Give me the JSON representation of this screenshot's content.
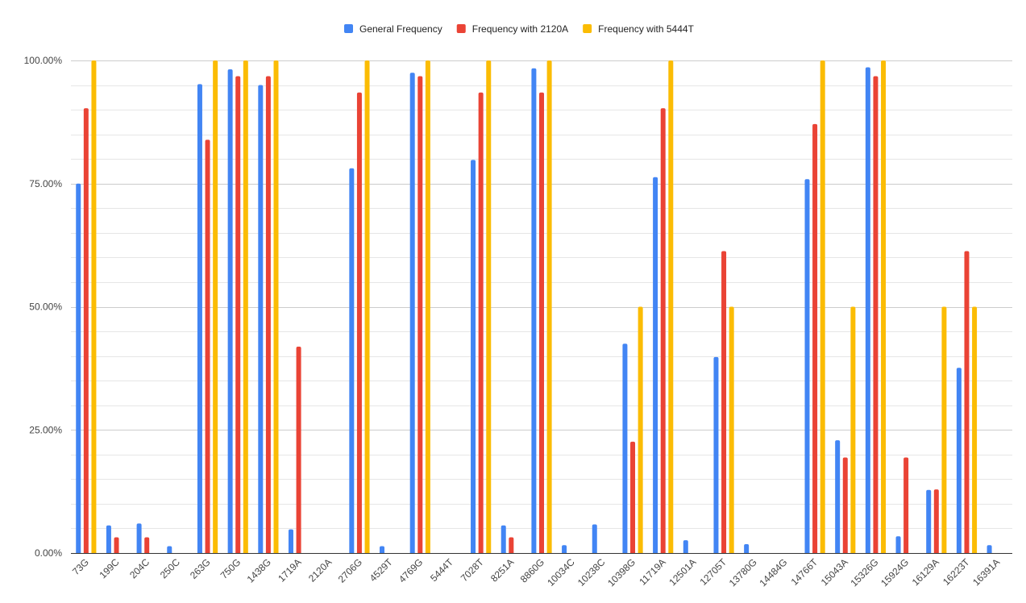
{
  "chart_data": {
    "type": "bar",
    "title": "",
    "xlabel": "",
    "ylabel": "",
    "ylim": [
      0,
      100
    ],
    "yticks": [
      "0.00%",
      "25.00%",
      "50.00%",
      "75.00%",
      "100.00%"
    ],
    "ytick_values": [
      0,
      25,
      50,
      75,
      100
    ],
    "grid": true,
    "legend_position": "top-center",
    "categories": [
      "73G",
      "199C",
      "204C",
      "250C",
      "263G",
      "750G",
      "1438G",
      "1719A",
      "2120A",
      "2706G",
      "4529T",
      "4769G",
      "5444T",
      "7028T",
      "8251A",
      "8860G",
      "10034C",
      "10238C",
      "10398G",
      "11719A",
      "12501A",
      "12705T",
      "13780G",
      "14484G",
      "14766T",
      "15043A",
      "15326G",
      "15924G",
      "16129A",
      "16223T",
      "16391A"
    ],
    "series": [
      {
        "name": "General Frequency",
        "color": "#4285f4",
        "values": [
          75.0,
          5.6,
          6.0,
          1.4,
          95.2,
          98.2,
          95.0,
          4.8,
          0,
          78.1,
          1.4,
          97.5,
          0,
          79.8,
          5.6,
          98.4,
          1.6,
          5.8,
          42.5,
          76.3,
          2.6,
          39.8,
          1.8,
          0,
          75.9,
          22.9,
          98.6,
          3.4,
          12.8,
          37.6,
          1.6
        ]
      },
      {
        "name": "Frequency with 2120A",
        "color": "#ea4335",
        "values": [
          90.3,
          3.2,
          3.2,
          0,
          83.9,
          96.8,
          96.8,
          41.9,
          0,
          93.5,
          0,
          96.8,
          0,
          93.5,
          3.2,
          93.5,
          0,
          0,
          22.6,
          90.3,
          0,
          61.3,
          0,
          0,
          87.1,
          19.4,
          96.8,
          19.4,
          12.9,
          61.3,
          0
        ]
      },
      {
        "name": "Frequency with 5444T",
        "color": "#fbbc04",
        "values": [
          100,
          0,
          0,
          0,
          100,
          100,
          100,
          0,
          0,
          100,
          0,
          100,
          0,
          100,
          0,
          100,
          0,
          0,
          50,
          100,
          0,
          50,
          0,
          0,
          100,
          50,
          100,
          0,
          50,
          50,
          0
        ]
      }
    ]
  }
}
